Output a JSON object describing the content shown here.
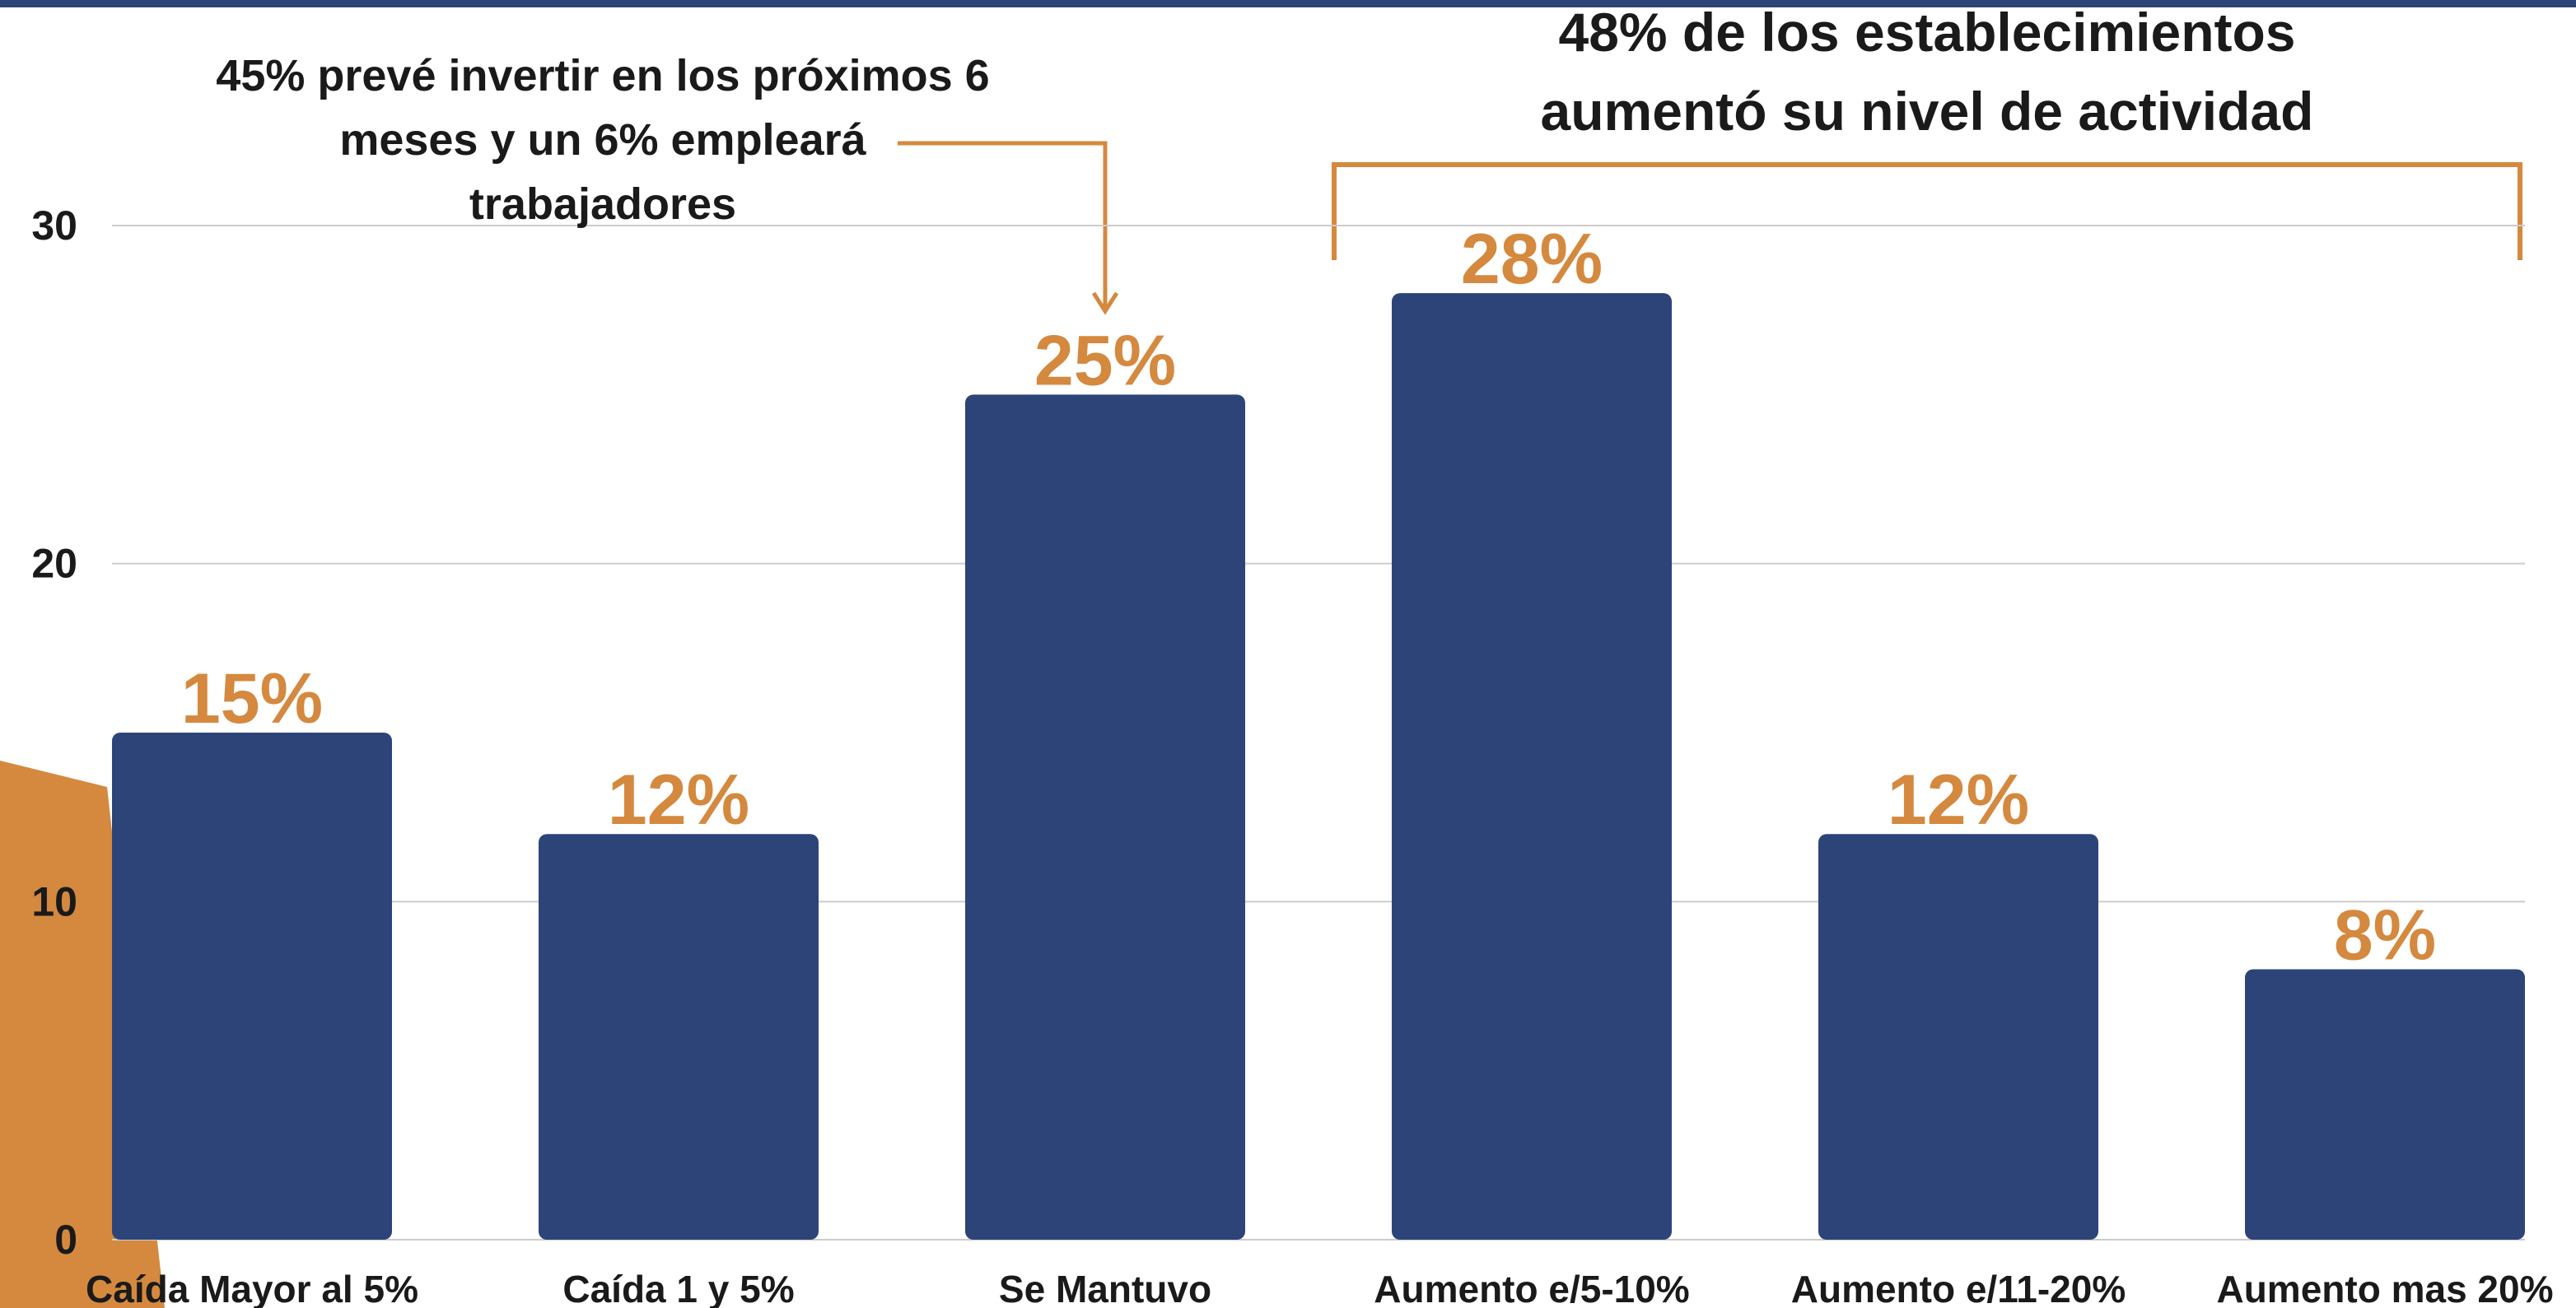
{
  "chart_data": {
    "type": "bar",
    "categories": [
      "Caída Mayor al 5%",
      "Caída 1 y 5%",
      "Se Mantuvo",
      "Aumento e/5-10%",
      "Aumento e/11-20%",
      "Aumento mas 20%"
    ],
    "values": [
      15,
      12,
      25,
      28,
      12,
      8
    ],
    "value_labels": [
      "15%",
      "12%",
      "25%",
      "28%",
      "12%",
      "8%"
    ],
    "color": "#2d4479",
    "label_color": "#d4893f",
    "ylim": [
      0,
      30
    ],
    "yticks": [
      0,
      10,
      20,
      30
    ],
    "grid": true,
    "annotations": [
      [
        "45% prevé invertir en los próximos 6",
        "meses y un 6% empleará",
        "trabajadores"
      ],
      [
        "48% de los establecimientos",
        "aumentó su nivel de actividad"
      ]
    ]
  }
}
